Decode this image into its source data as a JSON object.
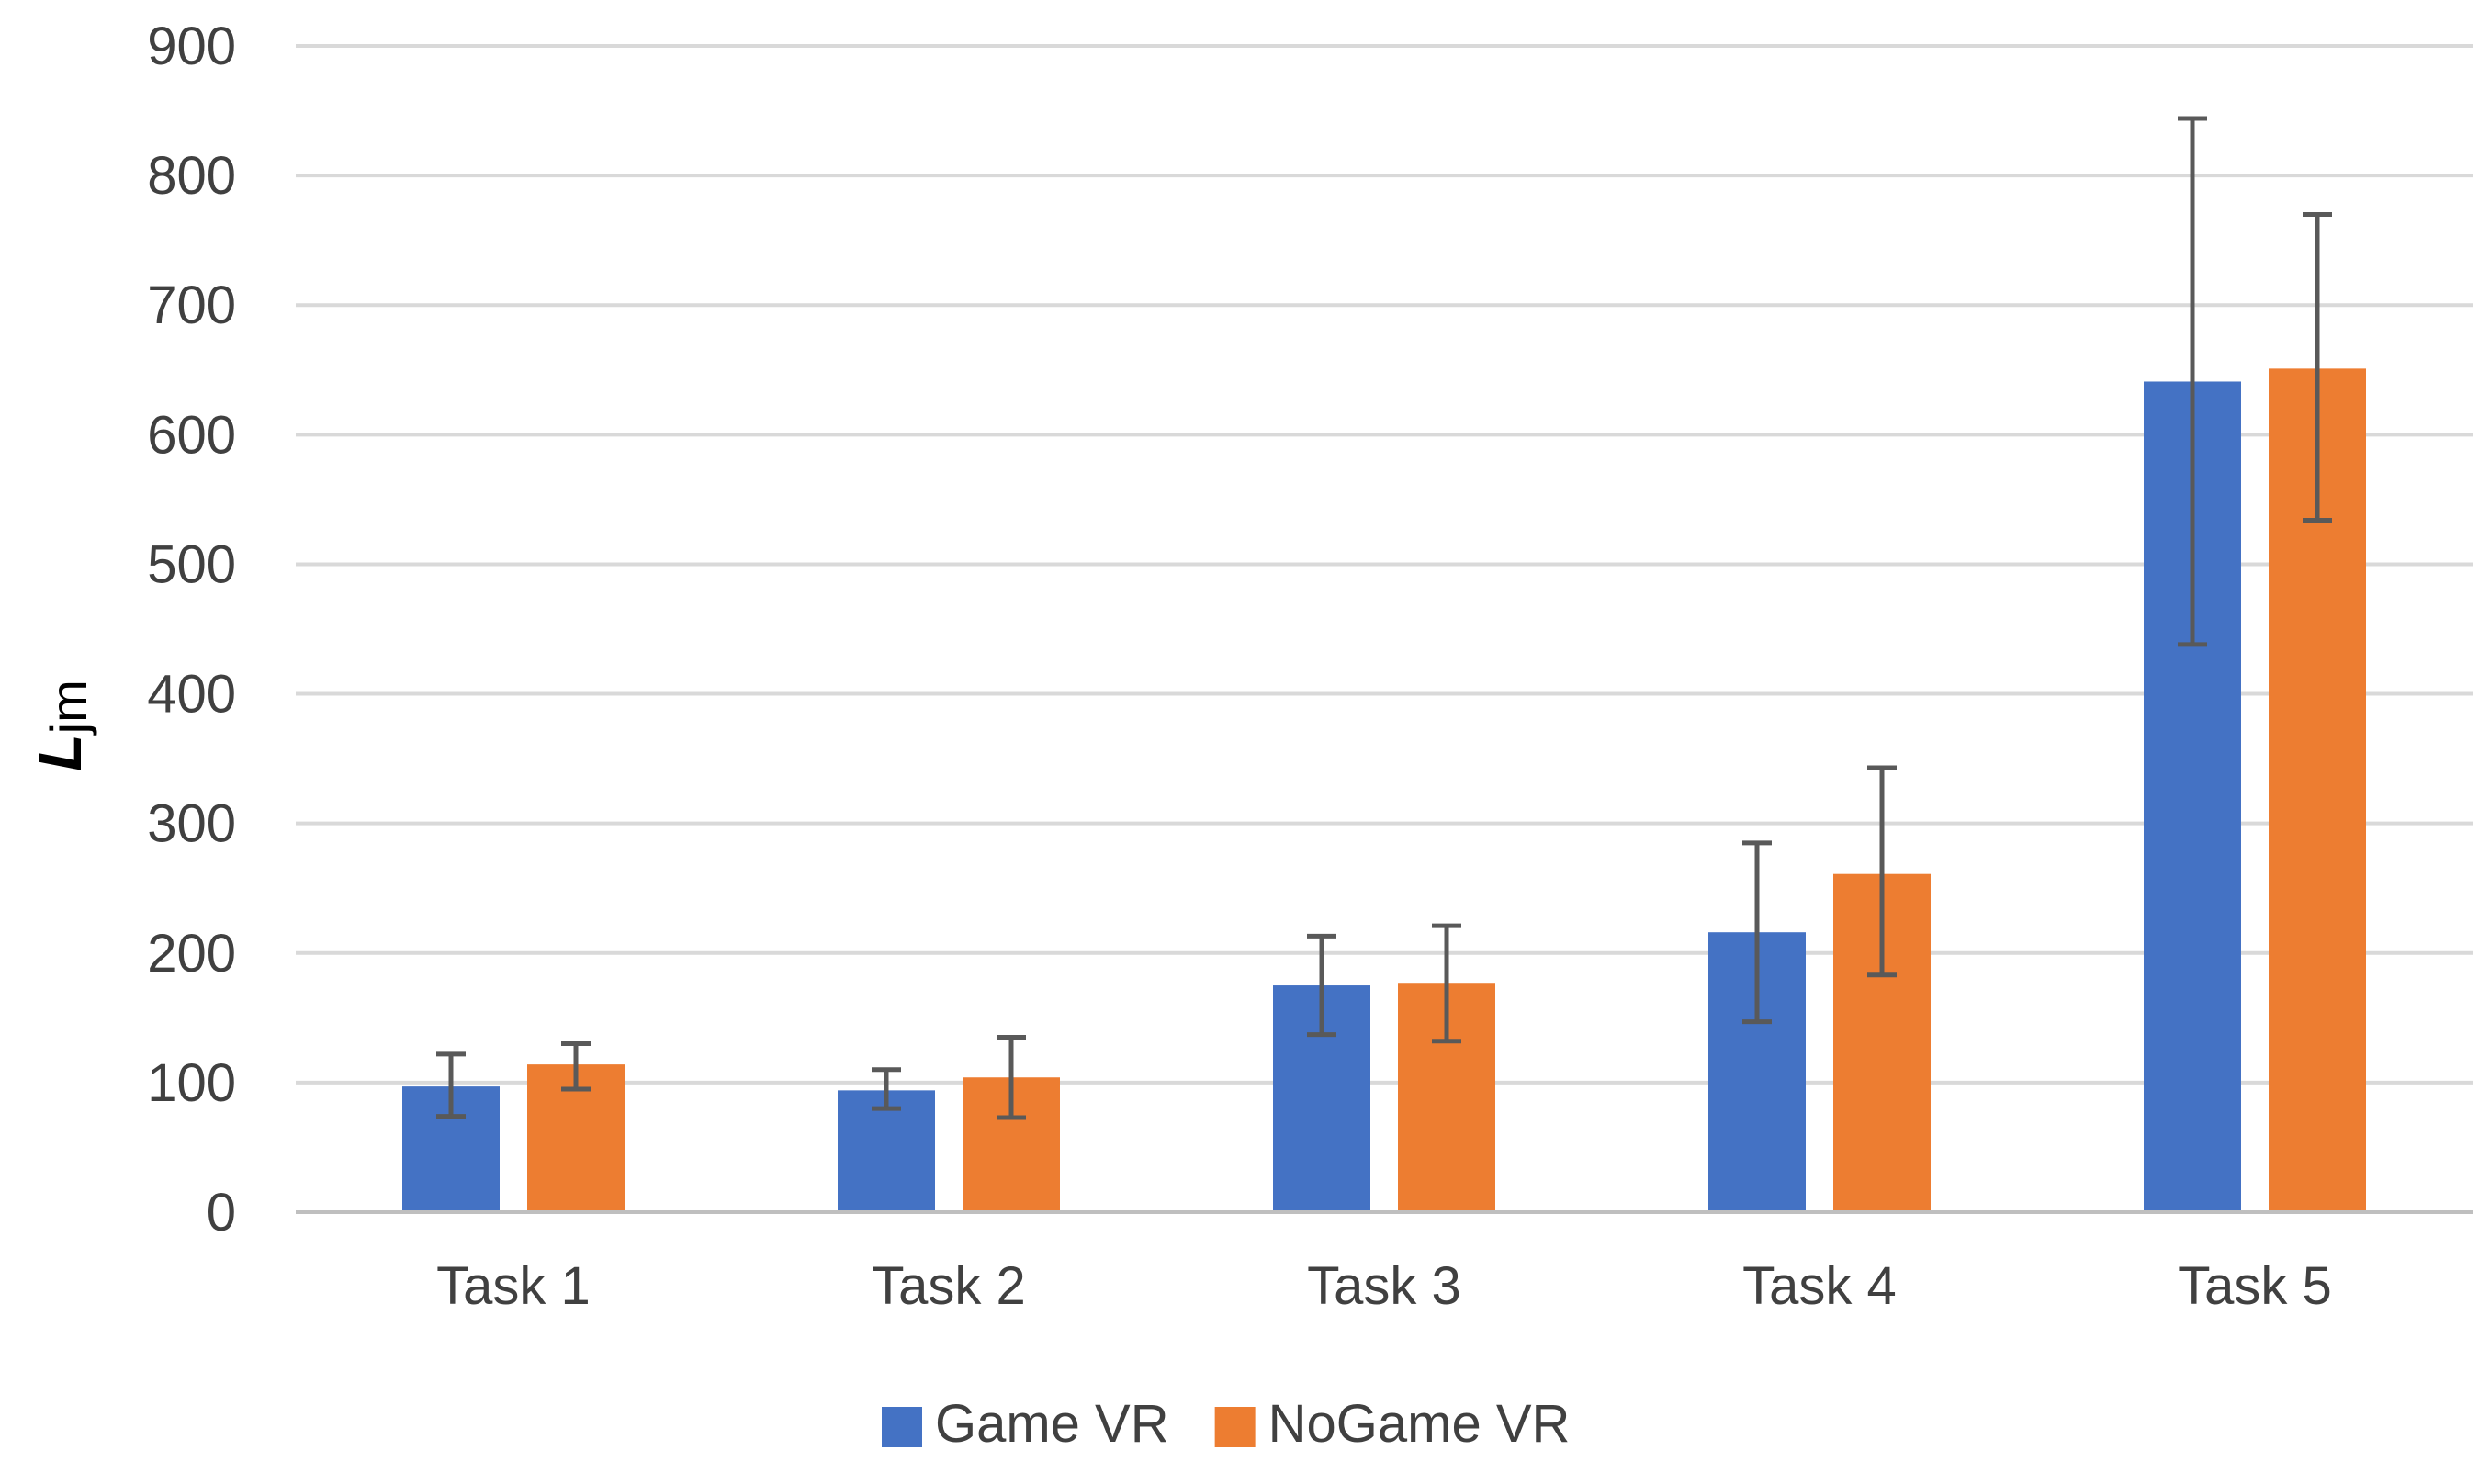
{
  "chart_data": {
    "type": "bar",
    "title": "",
    "xlabel": "",
    "ylabel": {
      "main": "L",
      "sub": "jm"
    },
    "ylim": [
      0,
      900
    ],
    "yticks": [
      0,
      100,
      200,
      300,
      400,
      500,
      600,
      700,
      800,
      900
    ],
    "grid": true,
    "legend_position": "bottom",
    "categories": [
      "Task 1",
      "Task 2",
      "Task 3",
      "Task 4",
      "Task 5"
    ],
    "series": [
      {
        "name": "Game VR",
        "color": "#4472C4",
        "values": [
          97,
          94,
          175,
          216,
          641
        ],
        "error_low": [
          74,
          80,
          137,
          147,
          438
        ],
        "error_high": [
          122,
          110,
          213,
          285,
          844
        ]
      },
      {
        "name": "NoGame VR",
        "color": "#ED7D31",
        "values": [
          114,
          104,
          177,
          261,
          651
        ],
        "error_low": [
          95,
          73,
          132,
          183,
          534
        ],
        "error_high": [
          130,
          135,
          221,
          343,
          770
        ]
      }
    ],
    "error_bar_color": "#595959",
    "grid_color": "#D9D9D9",
    "axis_color": "#BFBFBF"
  }
}
